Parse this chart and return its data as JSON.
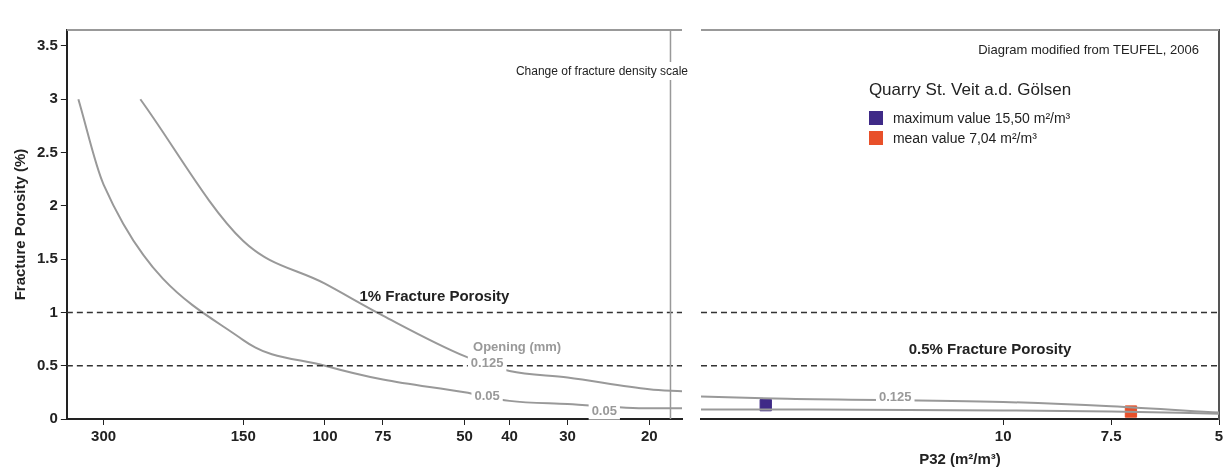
{
  "chart_data": [
    {
      "type": "line",
      "ylabel": "Fracture Porosity (%)",
      "log": "x",
      "grid": false,
      "marker": "none",
      "line_style": "solid",
      "xlim": [
        360,
        17
      ],
      "xticks": [
        300,
        150,
        100,
        75,
        50,
        40,
        30,
        20
      ],
      "ylim": [
        0,
        3.65
      ],
      "yticks": [
        0,
        0.5,
        1,
        1.5,
        2,
        2.5,
        3,
        3.5
      ],
      "series": [
        {
          "name": "0.125",
          "color": "#999999",
          "x": [
            250,
            150,
            100,
            75,
            50,
            40,
            30,
            20,
            17
          ],
          "values": [
            3,
            1.67,
            1.27,
            0.97,
            0.59,
            0.45,
            0.39,
            0.28,
            0.26
          ]
        },
        {
          "name": "0.05",
          "color": "#999999",
          "x": [
            340,
            300,
            150,
            100,
            75,
            50,
            40,
            30,
            20,
            17
          ],
          "values": [
            3,
            2.2,
            0.74,
            0.5,
            0.37,
            0.25,
            0.17,
            0.14,
            0.1,
            0.1
          ]
        }
      ],
      "ref_lines": [
        {
          "axis": "y",
          "value": 1,
          "label": "1% Fracture Porosity",
          "color": "#333333",
          "line_style": "dashed"
        },
        {
          "axis": "y",
          "value": 0.5,
          "label": null,
          "color": "#333333",
          "line_style": "dashed"
        },
        {
          "axis": "x",
          "value": 18,
          "label": "Change of fracture density scale",
          "color": "#999999",
          "line_style": "solid"
        }
      ],
      "annotations": [
        "Opening (mm)",
        {
          "text": "0.05",
          "x": 25,
          "y": 0.07
        }
      ]
    },
    {
      "type": "line",
      "xlabel": "P32 (m²/m³)",
      "tick_labels": "x",
      "grid": false,
      "marker": "none",
      "line_style": "solid",
      "legend": "top",
      "legend_title": "Quarry St. Veit a.d. Gölsen",
      "xlim": [
        17,
        5
      ],
      "xticks": [
        10,
        7.5,
        5
      ],
      "ylim": [
        0,
        3.65
      ],
      "yticks": [
        0,
        0.5,
        1,
        1.5,
        2,
        2.5,
        3,
        3.5
      ],
      "series": [
        {
          "color": "#999999",
          "x": [
            17,
            15,
            10,
            7.5,
            5
          ],
          "values": [
            0.21,
            0.19,
            0.16,
            0.12,
            0.06
          ]
        },
        {
          "color": "#999999",
          "x": [
            17,
            15,
            10,
            7.5,
            5
          ],
          "values": [
            0.09,
            0.09,
            0.08,
            0.07,
            0.05
          ]
        },
        {
          "type": "scatter",
          "marker": "square",
          "name": "maximum value 15,50 m²/m³",
          "color": "#3f2a87",
          "x": [
            15.5
          ],
          "values": [
            0.13
          ]
        },
        {
          "type": "scatter",
          "marker": "square",
          "name": "mean value 7,04  m²/m³",
          "color": "#e8502a",
          "x": [
            7.04
          ],
          "values": [
            0.07
          ]
        }
      ],
      "ref_lines": [
        {
          "axis": "y",
          "value": 1,
          "label": null,
          "color": "#333333",
          "line_style": "dashed"
        },
        {
          "axis": "y",
          "value": 0.5,
          "label": "0.5% Fracture Porosity",
          "color": "#333333",
          "line_style": "dashed"
        }
      ],
      "annotations": [
        "Diagram modified from TEUFEL, 2006",
        {
          "text": "0.125",
          "x": 12.5,
          "y": 0.2
        }
      ]
    }
  ]
}
